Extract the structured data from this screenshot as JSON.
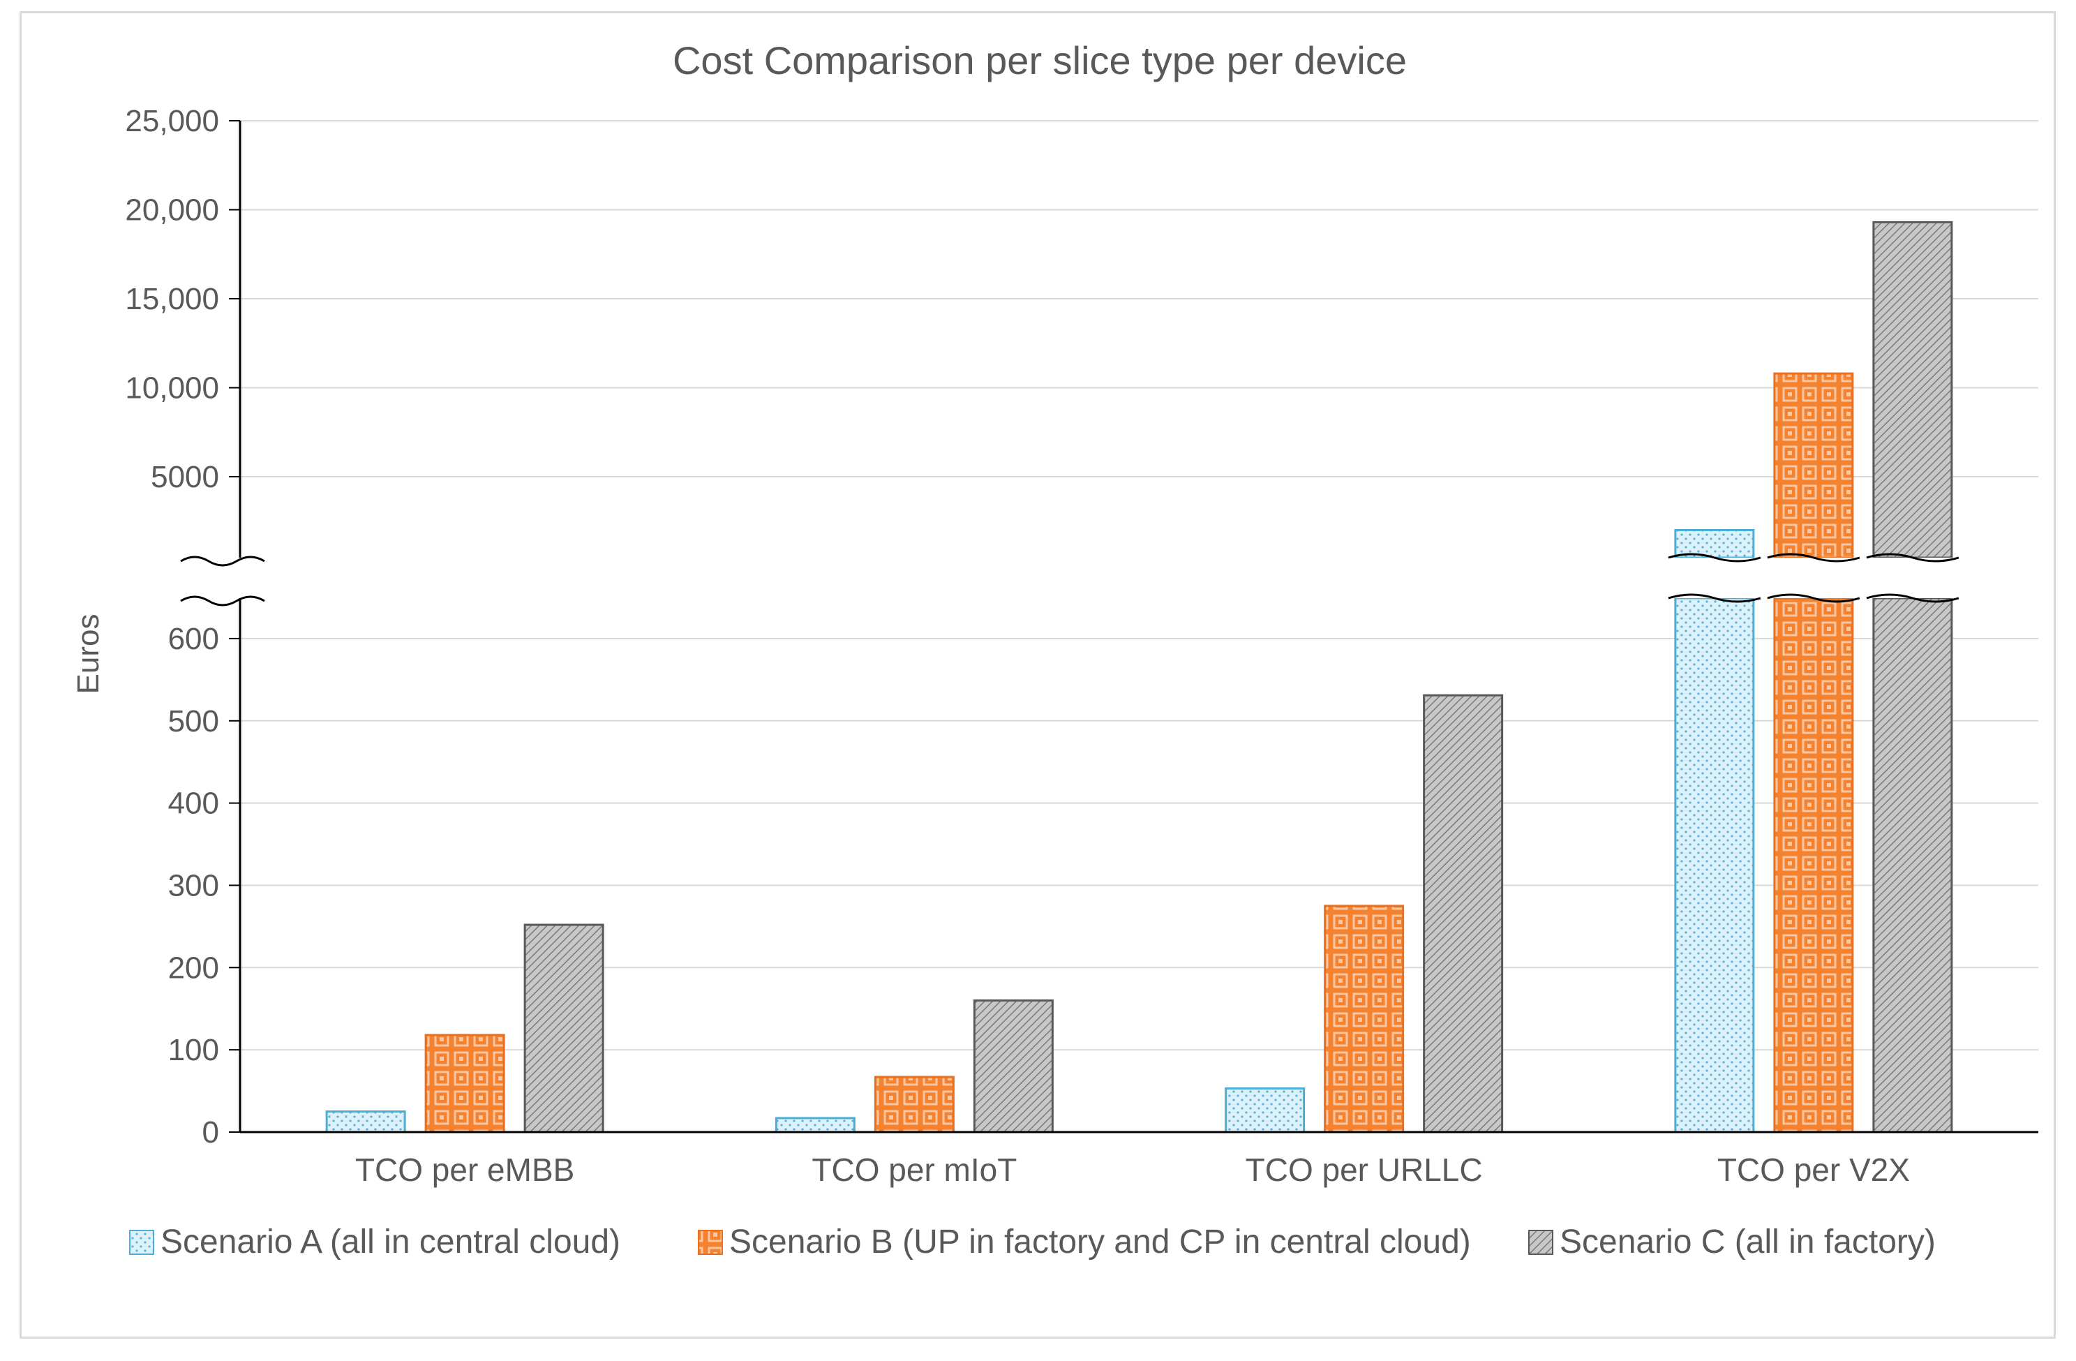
{
  "chart_data": {
    "type": "bar",
    "title": "Cost Comparison per slice type per device",
    "xlabel": "",
    "ylabel": "Euros",
    "categories": [
      "TCO per eMBB",
      "TCO per mIoT",
      "TCO per URLLC",
      "TCO per V2X"
    ],
    "series": [
      {
        "name": "Scenario A (all in central cloud)",
        "values": [
          25,
          17,
          53,
          2000
        ],
        "color": "#ddf1fb",
        "stroke": "#4aaed6",
        "pattern": "dots"
      },
      {
        "name": "Scenario B (UP in factory and CP in central cloud)",
        "values": [
          118,
          67,
          275,
          10800
        ],
        "color": "#f5823c",
        "stroke": "#e8701f",
        "pattern": "lattice"
      },
      {
        "name": "Scenario C (all in factory)",
        "values": [
          252,
          160,
          531,
          19300
        ],
        "color": "#bdbdbd",
        "stroke": "#595959",
        "pattern": "diagonal"
      }
    ],
    "axis_break": true,
    "lower_axis": {
      "ylim": [
        0,
        650
      ],
      "ticks": [
        0,
        100,
        200,
        300,
        400,
        500,
        600
      ],
      "tick_labels": [
        "0",
        "100",
        "200",
        "300",
        "400",
        "500",
        "600"
      ]
    },
    "upper_axis": {
      "ylim": [
        0,
        25000
      ],
      "ticks": [
        5000,
        10000,
        15000,
        20000,
        25000
      ],
      "tick_labels": [
        "5000",
        "10,000",
        "15,000",
        "20,000",
        "25,000"
      ]
    },
    "grid": true,
    "legend_position": "bottom"
  },
  "colors": {
    "gridline": "#d9d9d9",
    "axis": "#000000",
    "text": "#595959"
  }
}
